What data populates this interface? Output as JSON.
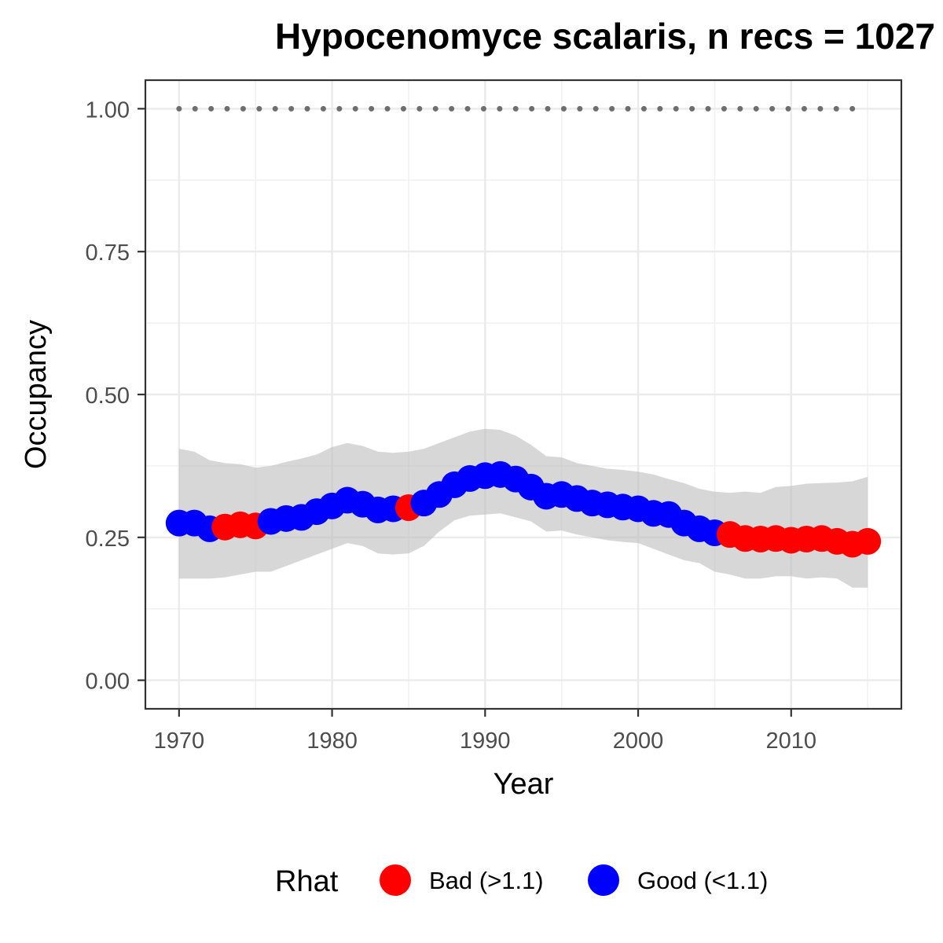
{
  "chart_data": {
    "type": "line",
    "title": "Hypocenomyce scalaris, n recs = 1027",
    "xlabel": "Year",
    "ylabel": "Occupancy",
    "xlim": [
      1967.8,
      2017.2
    ],
    "ylim": [
      -0.05,
      1.05
    ],
    "xticks": [
      1970,
      1980,
      1990,
      2000,
      2010
    ],
    "yticks": [
      0.0,
      0.25,
      0.5,
      0.75,
      1.0
    ],
    "ytick_labels": [
      "0.00",
      "0.25",
      "0.50",
      "0.75",
      "1.00"
    ],
    "grid": true,
    "legend_position": "bottom",
    "legend": {
      "title": "Rhat",
      "entries": [
        {
          "label": "Bad (>1.1)",
          "color": "#ff0000",
          "key": "bad"
        },
        {
          "label": "Good (<1.1)",
          "color": "#0000ff",
          "key": "good"
        }
      ]
    },
    "reference_line": {
      "y": 1.0,
      "style": "dotted",
      "color": "#6e6e6e",
      "x": [
        1970,
        2015
      ]
    },
    "x": [
      1970,
      1971,
      1972,
      1973,
      1974,
      1975,
      1976,
      1977,
      1978,
      1979,
      1980,
      1981,
      1982,
      1983,
      1984,
      1985,
      1986,
      1987,
      1988,
      1989,
      1990,
      1991,
      1992,
      1993,
      1994,
      1995,
      1996,
      1997,
      1998,
      1999,
      2000,
      2001,
      2002,
      2003,
      2004,
      2005,
      2006,
      2007,
      2008,
      2009,
      2010,
      2011,
      2012,
      2013,
      2014,
      2015
    ],
    "series": [
      {
        "name": "Occupancy",
        "values": [
          0.275,
          0.275,
          0.265,
          0.268,
          0.272,
          0.27,
          0.278,
          0.283,
          0.285,
          0.295,
          0.305,
          0.315,
          0.308,
          0.298,
          0.3,
          0.302,
          0.31,
          0.325,
          0.342,
          0.353,
          0.358,
          0.36,
          0.352,
          0.338,
          0.322,
          0.325,
          0.318,
          0.31,
          0.307,
          0.303,
          0.3,
          0.292,
          0.29,
          0.275,
          0.265,
          0.258,
          0.255,
          0.248,
          0.247,
          0.248,
          0.245,
          0.247,
          0.248,
          0.243,
          0.238,
          0.243
        ],
        "lower": [
          0.178,
          0.178,
          0.178,
          0.18,
          0.185,
          0.19,
          0.19,
          0.2,
          0.21,
          0.22,
          0.23,
          0.24,
          0.235,
          0.222,
          0.22,
          0.222,
          0.235,
          0.26,
          0.28,
          0.288,
          0.29,
          0.292,
          0.285,
          0.278,
          0.26,
          0.262,
          0.255,
          0.25,
          0.245,
          0.242,
          0.24,
          0.23,
          0.22,
          0.21,
          0.205,
          0.19,
          0.185,
          0.178,
          0.178,
          0.182,
          0.182,
          0.178,
          0.18,
          0.178,
          0.162,
          0.162
        ],
        "upper": [
          0.405,
          0.4,
          0.385,
          0.38,
          0.378,
          0.372,
          0.375,
          0.382,
          0.388,
          0.395,
          0.408,
          0.415,
          0.41,
          0.4,
          0.398,
          0.4,
          0.405,
          0.415,
          0.425,
          0.435,
          0.44,
          0.438,
          0.428,
          0.412,
          0.392,
          0.39,
          0.38,
          0.375,
          0.37,
          0.368,
          0.365,
          0.36,
          0.352,
          0.345,
          0.335,
          0.33,
          0.328,
          0.33,
          0.328,
          0.338,
          0.34,
          0.344,
          0.345,
          0.346,
          0.348,
          0.356
        ],
        "rhat_status": [
          "good",
          "good",
          "good",
          "bad",
          "bad",
          "bad",
          "good",
          "good",
          "good",
          "good",
          "good",
          "good",
          "good",
          "good",
          "good",
          "bad",
          "good",
          "good",
          "good",
          "good",
          "good",
          "good",
          "good",
          "good",
          "good",
          "good",
          "good",
          "good",
          "good",
          "good",
          "good",
          "good",
          "good",
          "good",
          "good",
          "good",
          "bad",
          "bad",
          "bad",
          "bad",
          "bad",
          "bad",
          "bad",
          "bad",
          "bad",
          "bad"
        ]
      }
    ]
  }
}
